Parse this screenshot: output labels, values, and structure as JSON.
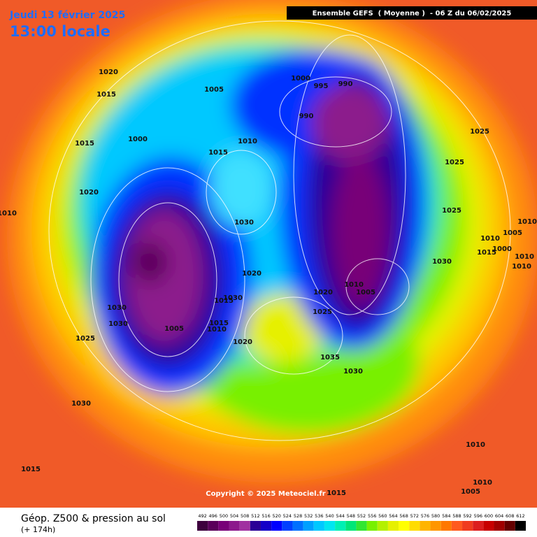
{
  "header": {
    "date": "Jeudi 13 février 2025",
    "local_time": "13:00 locale"
  },
  "run_info": "Ensemble GEFS  ( Moyenne )  - 06 Z du 06/02/2025",
  "copyright": "Copyright © 2025 Meteociel.fr",
  "footer": {
    "title": "Géop. Z500 & pression au sol",
    "lead": "(+ 174h)"
  },
  "scale": {
    "labels": [
      492,
      496,
      500,
      504,
      508,
      512,
      516,
      520,
      524,
      528,
      532,
      536,
      540,
      544,
      548,
      552,
      556,
      560,
      564,
      568,
      572,
      576,
      580,
      584,
      588,
      592,
      596,
      600,
      604,
      608,
      612
    ],
    "colors": [
      "#3d003d",
      "#5a005a",
      "#780078",
      "#8c1a8c",
      "#a030a0",
      "#2a0096",
      "#1400c8",
      "#0000ff",
      "#0040ff",
      "#0070ff",
      "#00a0ff",
      "#00c8ff",
      "#00e6f0",
      "#00f0b4",
      "#00e678",
      "#32e632",
      "#78f000",
      "#b4f000",
      "#e6f000",
      "#ffff00",
      "#ffdc00",
      "#ffb400",
      "#ff9600",
      "#ff7800",
      "#ff5a1e",
      "#f03c1e",
      "#dc1e1e",
      "#c80000",
      "#a00000",
      "#640000",
      "#000000"
    ]
  },
  "isobars": [
    1020,
    1015,
    1005,
    1000,
    995,
    990,
    990,
    1025,
    1000,
    1015,
    1010,
    1015,
    1025,
    1020,
    1010,
    1025,
    1030,
    1010,
    1005,
    1010,
    1000,
    1015,
    1010,
    1030,
    1010,
    1020,
    1020,
    1010,
    1005,
    1030,
    1015,
    1030,
    1025,
    1015,
    1010,
    1005,
    1030,
    1020,
    1025,
    1035,
    1030,
    1030,
    1010,
    1015,
    1010,
    1005,
    1015
  ]
}
